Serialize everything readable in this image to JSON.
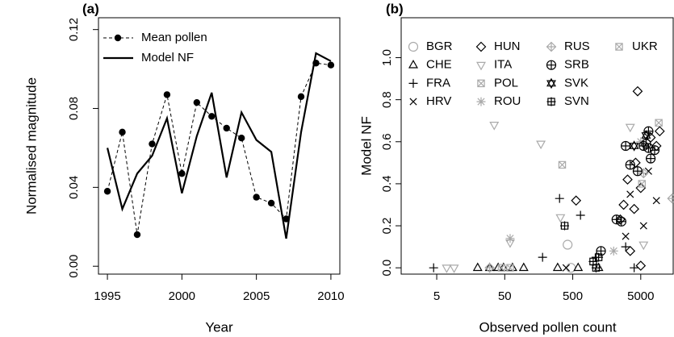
{
  "chart_data": [
    {
      "type": "line",
      "title": "(a)",
      "xlabel": "Year",
      "ylabel": "Normalised magnitude",
      "x": [
        1995,
        1996,
        1997,
        1998,
        1999,
        2000,
        2001,
        2002,
        2003,
        2004,
        2005,
        2006,
        2007,
        2008,
        2009,
        2010
      ],
      "series": [
        {
          "name": "Mean pollen",
          "color": "#000000",
          "line_style": "dashed",
          "marker": "dot",
          "values": [
            0.038,
            0.068,
            0.016,
            0.062,
            0.087,
            0.047,
            0.083,
            0.076,
            0.07,
            0.065,
            0.035,
            0.032,
            0.024,
            0.086,
            0.103,
            0.102
          ]
        },
        {
          "name": "Model NF",
          "color": "#000000",
          "line_style": "solid",
          "values": [
            0.06,
            0.029,
            0.047,
            0.056,
            0.075,
            0.037,
            0.066,
            0.088,
            0.045,
            0.078,
            0.064,
            0.058,
            0.014,
            0.068,
            0.108,
            0.104
          ]
        }
      ],
      "xlim": [
        1994.4,
        2010.6
      ],
      "xticks": [
        1995,
        2000,
        2005,
        2010
      ],
      "ylim": [
        -0.004,
        0.126
      ],
      "yticks": [
        {
          "value": 0,
          "label": "0.00"
        },
        0.04,
        0.08,
        0.12
      ]
    },
    {
      "type": "scatter",
      "title": "(b)",
      "xlabel": "Observed pollen count",
      "ylabel": "Model NF",
      "xscale": "log",
      "series": [
        {
          "name": "BGR",
          "color": "#aaaaaa",
          "marker": "circle",
          "x": [
            420,
            470
          ],
          "y": [
            0.11,
            0.0
          ]
        },
        {
          "name": "CHE",
          "color": "#000000",
          "marker": "triangle",
          "x": [
            20,
            30,
            40,
            48,
            65,
            95,
            300,
            600,
            1200
          ],
          "y": [
            0,
            0,
            0,
            0,
            0,
            0,
            0,
            0,
            0
          ]
        },
        {
          "name": "FRA",
          "color": "#000000",
          "marker": "plus",
          "x": [
            4.5,
            180,
            320,
            650,
            1100,
            3000,
            4000
          ],
          "y": [
            0,
            0.05,
            0.33,
            0.25,
            0.05,
            0.1,
            0
          ]
        },
        {
          "name": "HRV",
          "color": "#000000",
          "marker": "cross",
          "x": [
            400,
            3000,
            3500,
            6500,
            5500,
            8500
          ],
          "y": [
            0,
            0.15,
            0.35,
            0.46,
            0.2,
            0.32
          ]
        },
        {
          "name": "HUN",
          "color": "#000000",
          "marker": "diamond",
          "x": [
            560,
            2500,
            2800,
            4000,
            4500,
            5000,
            3200,
            4200,
            5000,
            7000,
            8500,
            9500,
            3500
          ],
          "y": [
            0.32,
            0.23,
            0.3,
            0.28,
            0.84,
            0.01,
            0.42,
            0.5,
            0.38,
            0.62,
            0.58,
            0.65,
            0.08
          ]
        },
        {
          "name": "ITA",
          "color": "#aaaaaa",
          "marker": "triangle-down",
          "x": [
            7,
            9,
            35,
            60,
            170,
            330,
            1100,
            3500,
            5500
          ],
          "y": [
            0,
            0,
            0.68,
            0.12,
            0.59,
            0.24,
            0,
            0.67,
            0.11
          ]
        },
        {
          "name": "POL",
          "color": "#aaaaaa",
          "marker": "square-cross",
          "x": [
            45,
            60,
            350,
            9200
          ],
          "y": [
            0,
            0,
            0.49,
            0.69
          ]
        },
        {
          "name": "ROU",
          "color": "#aaaaaa",
          "marker": "asterisk",
          "x": [
            60,
            2000,
            5000
          ],
          "y": [
            0.14,
            0.08,
            0.6
          ]
        },
        {
          "name": "RUS",
          "color": "#aaaaaa",
          "marker": "diamond-plus",
          "x": [
            30,
            14500,
            5500
          ],
          "y": [
            0,
            0.33,
            0.45
          ]
        },
        {
          "name": "SRB",
          "color": "#000000",
          "marker": "circle-plus",
          "x": [
            2200,
            2600,
            3500,
            4500,
            5500,
            6500,
            7000,
            6000,
            8000,
            3000,
            6500,
            1300
          ],
          "y": [
            0.23,
            0.22,
            0.49,
            0.46,
            0.58,
            0.65,
            0.52,
            0.59,
            0.56,
            0.58,
            0.57,
            0.08
          ]
        },
        {
          "name": "SVK",
          "color": "#000000",
          "marker": "star-of-david",
          "x": [
            4000,
            6000
          ],
          "y": [
            0.58,
            0.63
          ]
        },
        {
          "name": "SVN",
          "color": "#000000",
          "marker": "square-plus",
          "x": [
            380,
            1000,
            1100,
            1200
          ],
          "y": [
            0.2,
            0.03,
            0,
            0.05
          ]
        },
        {
          "name": "UKR",
          "color": "#aaaaaa",
          "marker": "square-cross",
          "x": [
            5200
          ],
          "y": [
            0.4
          ]
        }
      ],
      "xlim": [
        1.5,
        15000
      ],
      "xticks": [
        5,
        50,
        500,
        5000
      ],
      "ylim": [
        -0.03,
        1.19
      ],
      "yticks": [
        {
          "value": 0,
          "label": "0.0"
        },
        0.2,
        0.4,
        0.6,
        0.8,
        {
          "value": 1,
          "label": "1.0"
        }
      ]
    }
  ]
}
